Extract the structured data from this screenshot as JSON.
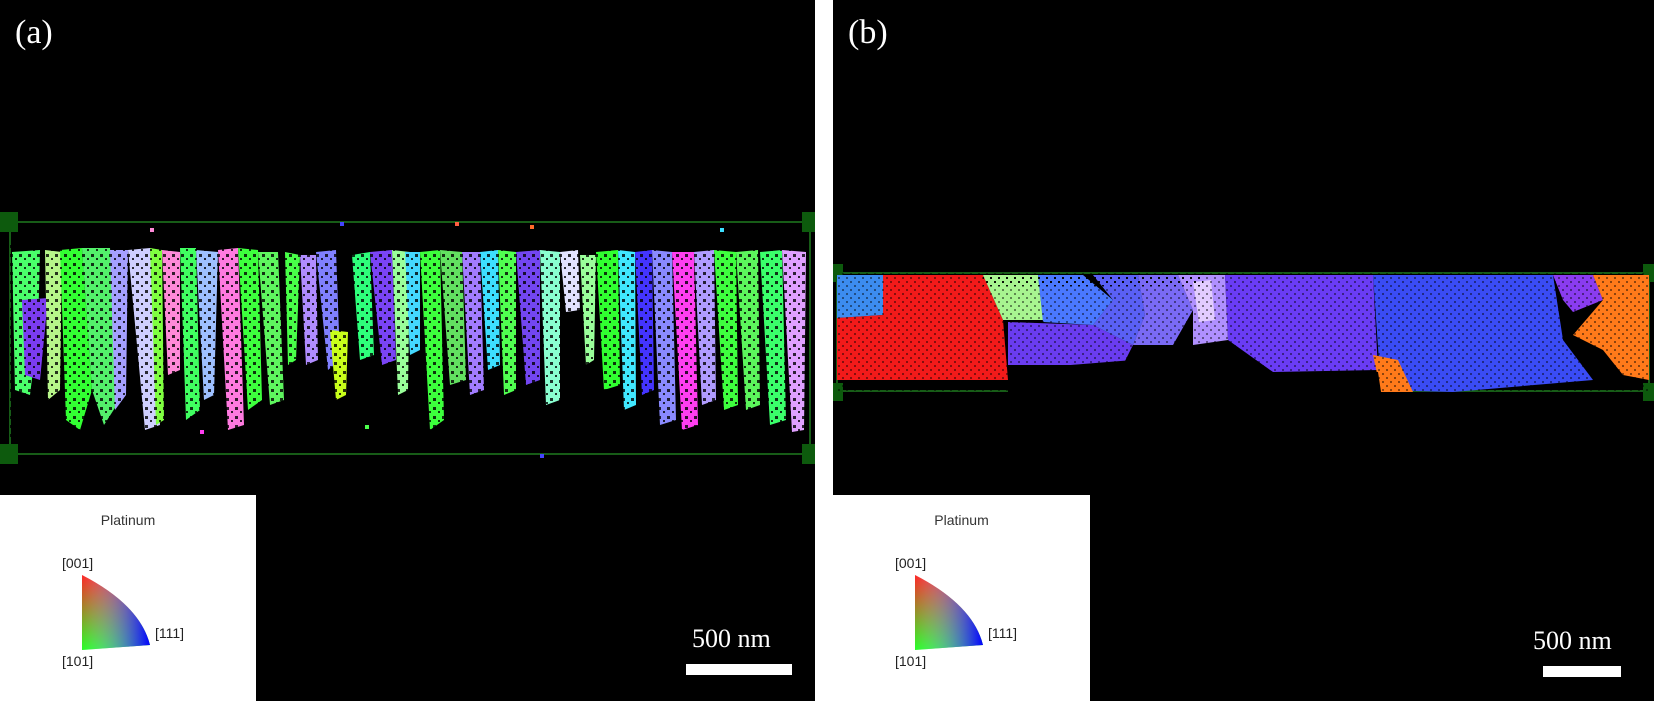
{
  "panels": [
    {
      "label": "(a)",
      "legend_title": "Platinum",
      "ipf_labels": {
        "top": "[001]",
        "right": "[111]",
        "bottom": "[101]"
      },
      "scale_text": "500 nm"
    },
    {
      "label": "(b)",
      "legend_title": "Platinum",
      "ipf_labels": {
        "top": "[001]",
        "right": "[111]",
        "bottom": "[101]"
      },
      "scale_text": "500 nm"
    }
  ],
  "colors": {
    "background": "#000000",
    "frame": "#1f7a1f",
    "grain_green": "#4cff4c",
    "grain_blue": "#3b4cf5",
    "grain_purple": "#7a3cf0",
    "grain_red": "#f21a1a",
    "grain_orange": "#ff7a1a"
  }
}
